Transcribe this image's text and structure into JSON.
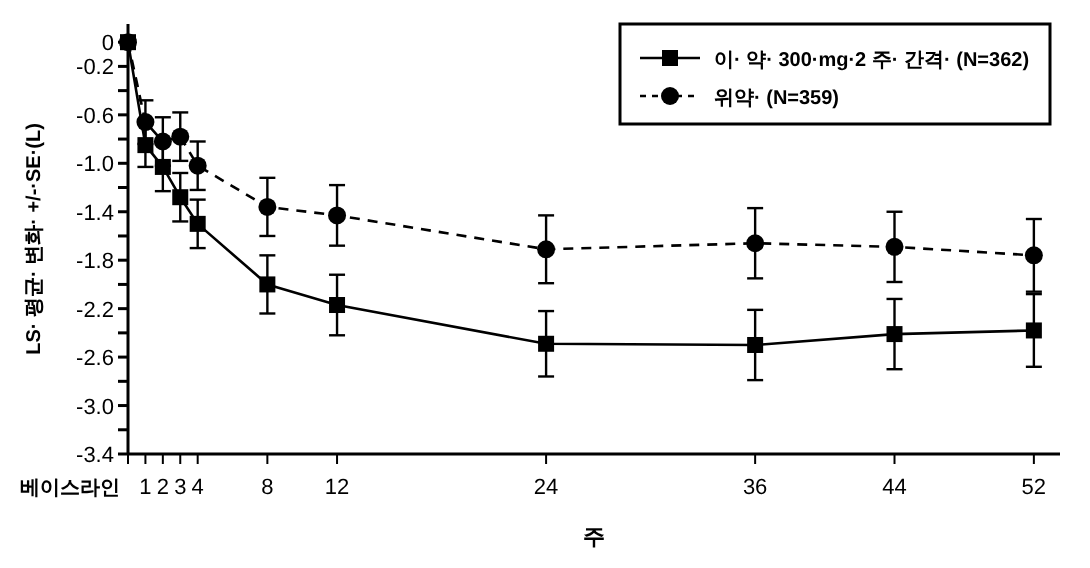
{
  "chart_data": {
    "type": "line",
    "xlabel": "주",
    "ylabel": "LS· 평균· 변화· +/-·SE·(L)",
    "xlim": [
      0,
      53.5
    ],
    "ylim": [
      -3.4,
      0.15
    ],
    "annotations": [
      "베이스라인"
    ],
    "xticks": [
      {
        "value": 0,
        "label": null
      },
      1,
      2,
      3,
      4,
      8,
      12,
      24,
      36,
      44,
      52
    ],
    "yticks": [
      0,
      -0.2,
      {
        "value": -0.4,
        "label": null
      },
      -0.6,
      {
        "value": -0.8,
        "label": null
      },
      {
        "value": -1,
        "label": "-1.0"
      },
      {
        "value": -1.2,
        "label": null
      },
      -1.4,
      {
        "value": -1.6,
        "label": null
      },
      -1.8,
      {
        "value": -2,
        "label": null
      },
      -2.2,
      {
        "value": -2.4,
        "label": null
      },
      -2.6,
      {
        "value": -2.8,
        "label": null
      },
      {
        "value": -3,
        "label": "-3.0"
      },
      {
        "value": -3.2,
        "label": null
      },
      -3.4
    ],
    "x": [
      0,
      1,
      2,
      3,
      4,
      8,
      12,
      24,
      36,
      44,
      52
    ],
    "grid": false,
    "legend": "top right",
    "series": [
      {
        "name": "이· 약· 300·mg·2 주· 간격· (N=362)",
        "color": "#000000",
        "marker": "square",
        "line_style": "solid",
        "values": [
          0,
          -0.85,
          -1.03,
          -1.28,
          -1.5,
          -2.0,
          -2.17,
          -2.49,
          -2.5,
          -2.41,
          -2.38
        ],
        "errors": [
          null,
          0.18,
          0.2,
          0.2,
          0.2,
          0.24,
          0.25,
          0.27,
          0.29,
          0.29,
          0.3
        ]
      },
      {
        "name": "위약· (N=359)",
        "color": "#000000",
        "marker": "circle",
        "line_style": "dashed",
        "values": [
          0,
          -0.66,
          -0.82,
          -0.78,
          -1.02,
          -1.36,
          -1.43,
          -1.71,
          -1.66,
          -1.69,
          -1.76
        ],
        "errors": [
          null,
          0.18,
          0.2,
          0.2,
          0.2,
          0.24,
          0.25,
          0.28,
          0.29,
          0.29,
          0.3
        ]
      }
    ]
  }
}
